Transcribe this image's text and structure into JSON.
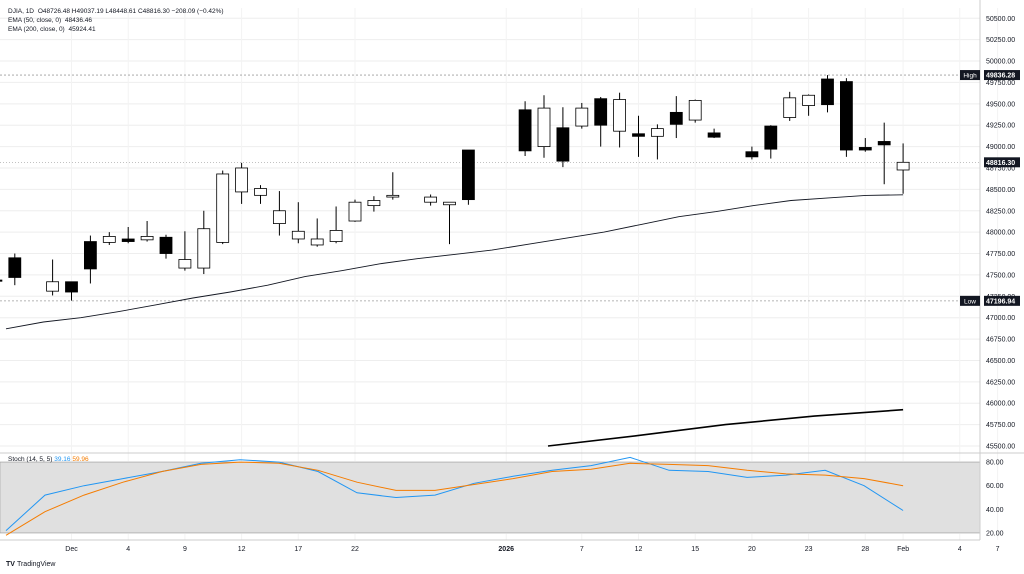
{
  "header": {
    "symbol": "DJIA, 1D",
    "ohlc": "O48726.48  H49037.19  L48448.61  C48816.30  −208.09 (−0.42%)",
    "ema50_label": "EMA (50, close, 0)",
    "ema50_value": "48436.46",
    "ema200_label": "EMA (200, close, 0)",
    "ema200_value": "45924.41"
  },
  "stoch_legend": {
    "label": "Stoch (14, 5, 5)",
    "k_value": "39.16",
    "d_value": "59.96"
  },
  "branding": {
    "logo_text": "TradingView"
  },
  "colors": {
    "up_candle": "#ffffff",
    "down_candle": "#000000",
    "ema50": "#131722",
    "ema200": "#000000",
    "stoch_k": "#2196f3",
    "stoch_d": "#f57c00",
    "stoch_band": "#e0e0e0",
    "grid": "#eeeeee"
  },
  "chart_data": {
    "type": "candlestick",
    "price_axis": {
      "range": [
        45430,
        50620
      ],
      "ticks": [
        "45500.00",
        "45750.00",
        "46000.00",
        "46250.00",
        "46500.00",
        "46750.00",
        "47000.00",
        "47250.00",
        "47500.00",
        "47750.00",
        "48000.00",
        "48250.00",
        "48500.00",
        "48750.00",
        "49000.00",
        "49250.00",
        "49500.00",
        "49750.00",
        "50000.00",
        "50250.00",
        "50500.00"
      ]
    },
    "markers": {
      "high": {
        "label": "High",
        "value": "49836.28"
      },
      "low": {
        "label": "Low",
        "value": "47196.94"
      },
      "last": {
        "value": "48816.30"
      }
    },
    "time_axis": {
      "ticks": [
        {
          "label": "Dec",
          "date": "2025-12-01"
        },
        {
          "label": "4",
          "date": "2025-12-04"
        },
        {
          "label": "9",
          "date": "2025-12-09"
        },
        {
          "label": "12",
          "date": "2025-12-12"
        },
        {
          "label": "17",
          "date": "2025-12-17"
        },
        {
          "label": "22",
          "date": "2025-12-22"
        },
        {
          "label": "2026",
          "date": "2026-01-01"
        },
        {
          "label": "7",
          "date": "2026-01-07"
        },
        {
          "label": "12",
          "date": "2026-01-12"
        },
        {
          "label": "15",
          "date": "2026-01-15"
        },
        {
          "label": "20",
          "date": "2026-01-20"
        },
        {
          "label": "23",
          "date": "2026-01-23"
        },
        {
          "label": "28",
          "date": "2026-01-28"
        },
        {
          "label": "Feb",
          "date": "2026-02-01"
        },
        {
          "label": "4",
          "date": "2026-02-04"
        },
        {
          "label": "7",
          "date": "2026-02-07"
        }
      ]
    },
    "candles": [
      {
        "date": "2025-11-25",
        "o": 47440,
        "h": 47460,
        "l": 47390,
        "c": 47430
      },
      {
        "date": "2025-11-26",
        "o": 47700,
        "h": 47750,
        "l": 47380,
        "c": 47470
      },
      {
        "date": "2025-11-28",
        "o": 47310,
        "h": 47680,
        "l": 47260,
        "c": 47420
      },
      {
        "date": "2025-12-01",
        "o": 47420,
        "h": 47420,
        "l": 47200,
        "c": 47300
      },
      {
        "date": "2025-12-02",
        "o": 47890,
        "h": 47960,
        "l": 47400,
        "c": 47570
      },
      {
        "date": "2025-12-03",
        "o": 47880,
        "h": 48000,
        "l": 47850,
        "c": 47950
      },
      {
        "date": "2025-12-04",
        "o": 47920,
        "h": 48060,
        "l": 47870,
        "c": 47890
      },
      {
        "date": "2025-12-05",
        "o": 47910,
        "h": 48130,
        "l": 47890,
        "c": 47950
      },
      {
        "date": "2025-12-08",
        "o": 47940,
        "h": 47970,
        "l": 47690,
        "c": 47750
      },
      {
        "date": "2025-12-09",
        "o": 47580,
        "h": 48010,
        "l": 47550,
        "c": 47680
      },
      {
        "date": "2025-12-10",
        "o": 47580,
        "h": 48250,
        "l": 47510,
        "c": 48040
      },
      {
        "date": "2025-12-11",
        "o": 47880,
        "h": 48720,
        "l": 47860,
        "c": 48680
      },
      {
        "date": "2025-12-12",
        "o": 48470,
        "h": 48810,
        "l": 48330,
        "c": 48750
      },
      {
        "date": "2025-12-15",
        "o": 48430,
        "h": 48550,
        "l": 48330,
        "c": 48510
      },
      {
        "date": "2025-12-16",
        "o": 48100,
        "h": 48480,
        "l": 47960,
        "c": 48250
      },
      {
        "date": "2025-12-17",
        "o": 47920,
        "h": 48350,
        "l": 47870,
        "c": 48010
      },
      {
        "date": "2025-12-18",
        "o": 47850,
        "h": 48160,
        "l": 47830,
        "c": 47920
      },
      {
        "date": "2025-12-19",
        "o": 47890,
        "h": 48300,
        "l": 47870,
        "c": 48020
      },
      {
        "date": "2025-12-22",
        "o": 48130,
        "h": 48380,
        "l": 48120,
        "c": 48350
      },
      {
        "date": "2025-12-23",
        "o": 48310,
        "h": 48420,
        "l": 48240,
        "c": 48370
      },
      {
        "date": "2025-12-24",
        "o": 48410,
        "h": 48700,
        "l": 48380,
        "c": 48430
      },
      {
        "date": "2025-12-26",
        "o": 48350,
        "h": 48440,
        "l": 48310,
        "c": 48410
      },
      {
        "date": "2025-12-29",
        "o": 48320,
        "h": 48340,
        "l": 47860,
        "c": 48350
      },
      {
        "date": "2025-12-30",
        "o": 48960,
        "h": 48960,
        "l": 48320,
        "c": 48380
      },
      {
        "date": "2026-01-02",
        "o": 49430,
        "h": 49530,
        "l": 48890,
        "c": 48950
      },
      {
        "date": "2026-01-05",
        "o": 49000,
        "h": 49600,
        "l": 48870,
        "c": 49450
      },
      {
        "date": "2026-01-06",
        "o": 49220,
        "h": 49460,
        "l": 48760,
        "c": 48830
      },
      {
        "date": "2026-01-07",
        "o": 49240,
        "h": 49510,
        "l": 49210,
        "c": 49450
      },
      {
        "date": "2026-01-08",
        "o": 49560,
        "h": 49580,
        "l": 49000,
        "c": 49250
      },
      {
        "date": "2026-01-09",
        "o": 49180,
        "h": 49630,
        "l": 48990,
        "c": 49550
      },
      {
        "date": "2026-01-12",
        "o": 49150,
        "h": 49360,
        "l": 48880,
        "c": 49120
      },
      {
        "date": "2026-01-13",
        "o": 49120,
        "h": 49260,
        "l": 48850,
        "c": 49210
      },
      {
        "date": "2026-01-14",
        "o": 49400,
        "h": 49590,
        "l": 49100,
        "c": 49260
      },
      {
        "date": "2026-01-15",
        "o": 49310,
        "h": 49550,
        "l": 49280,
        "c": 49540
      },
      {
        "date": "2026-01-16",
        "o": 49160,
        "h": 49210,
        "l": 49100,
        "c": 49110
      },
      {
        "date": "2026-01-20",
        "o": 48940,
        "h": 49000,
        "l": 48850,
        "c": 48880
      },
      {
        "date": "2026-01-21",
        "o": 49240,
        "h": 49250,
        "l": 48860,
        "c": 48970
      },
      {
        "date": "2026-01-22",
        "o": 49340,
        "h": 49640,
        "l": 49300,
        "c": 49570
      },
      {
        "date": "2026-01-23",
        "o": 49480,
        "h": 49610,
        "l": 49360,
        "c": 49600
      },
      {
        "date": "2026-01-26",
        "o": 49790,
        "h": 49836,
        "l": 49400,
        "c": 49490
      },
      {
        "date": "2026-01-27",
        "o": 49760,
        "h": 49800,
        "l": 48880,
        "c": 48960
      },
      {
        "date": "2026-01-28",
        "o": 48990,
        "h": 49100,
        "l": 48940,
        "c": 48960
      },
      {
        "date": "2026-01-29",
        "o": 49060,
        "h": 49280,
        "l": 48560,
        "c": 49020
      },
      {
        "date": "2026-01-30",
        "o": 48726.48,
        "h": 49037.19,
        "l": 48448.61,
        "c": 48816.3
      }
    ],
    "ema50": [
      46870,
      46950,
      47000,
      47070,
      47150,
      47230,
      47300,
      47380,
      47480,
      47550,
      47630,
      47690,
      47740,
      47790,
      47860,
      47930,
      48000,
      48090,
      48180,
      48240,
      48310,
      48370,
      48400,
      48430,
      48436
    ],
    "ema200": [
      45500,
      45620,
      45750,
      45850,
      45924
    ],
    "stochastic": {
      "k": [
        22,
        52,
        60,
        66,
        72,
        79,
        82,
        80,
        72,
        54,
        50,
        52,
        62,
        68,
        73,
        77,
        84,
        73,
        72,
        67,
        69,
        73,
        60,
        39
      ],
      "d": [
        18,
        38,
        52,
        63,
        72,
        78,
        80,
        79,
        73,
        63,
        56,
        56,
        61,
        66,
        72,
        74,
        79,
        78,
        77,
        73,
        70,
        69,
        66,
        60
      ],
      "ylim": [
        14,
        86
      ],
      "ticks": [
        "80.00",
        "60.00",
        "40.00",
        "20.00"
      ],
      "band": [
        20,
        80
      ]
    }
  }
}
